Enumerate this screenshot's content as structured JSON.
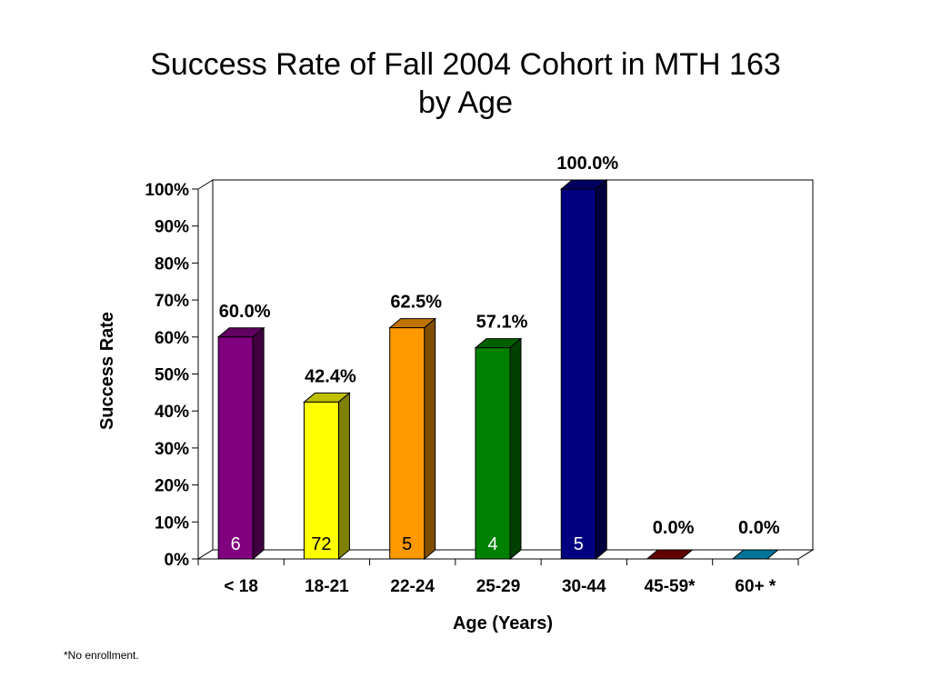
{
  "title_lines": [
    "Success Rate of Fall 2004 Cohort in MTH 163",
    "by Age"
  ],
  "footnote": "*No enrollment.",
  "chart_data": {
    "type": "bar",
    "title": "Success Rate of Fall 2004 Cohort in MTH 163 by Age",
    "xlabel": "Age (Years)",
    "ylabel": "Success Rate",
    "ylim": [
      0,
      100
    ],
    "yticks": [
      0,
      10,
      20,
      30,
      40,
      50,
      60,
      70,
      80,
      90,
      100
    ],
    "ytick_labels": [
      "0%",
      "10%",
      "20%",
      "30%",
      "40%",
      "50%",
      "60%",
      "70%",
      "80%",
      "90%",
      "100%"
    ],
    "grid": false,
    "legend": "none",
    "categories": [
      "< 18",
      "18-21",
      "22-24",
      "25-29",
      "30-44",
      "45-59*",
      "60+ *"
    ],
    "values": [
      60.0,
      42.4,
      62.5,
      57.1,
      100.0,
      0.0,
      0.0
    ],
    "data_labels": [
      "60.0%",
      "42.4%",
      "62.5%",
      "57.1%",
      "100.0%",
      "0.0%",
      "0.0%"
    ],
    "counts": [
      "6",
      "72",
      "5",
      "4",
      "5",
      "",
      ""
    ],
    "colors": [
      "#800080",
      "#ffff00",
      "#ff9900",
      "#008000",
      "#000080",
      "#800000",
      "#0099cc"
    ],
    "count_label_colors": [
      "#ffffff",
      "#000000",
      "#000000",
      "#ffffff",
      "#ffffff",
      "#ffffff",
      "#ffffff"
    ]
  }
}
